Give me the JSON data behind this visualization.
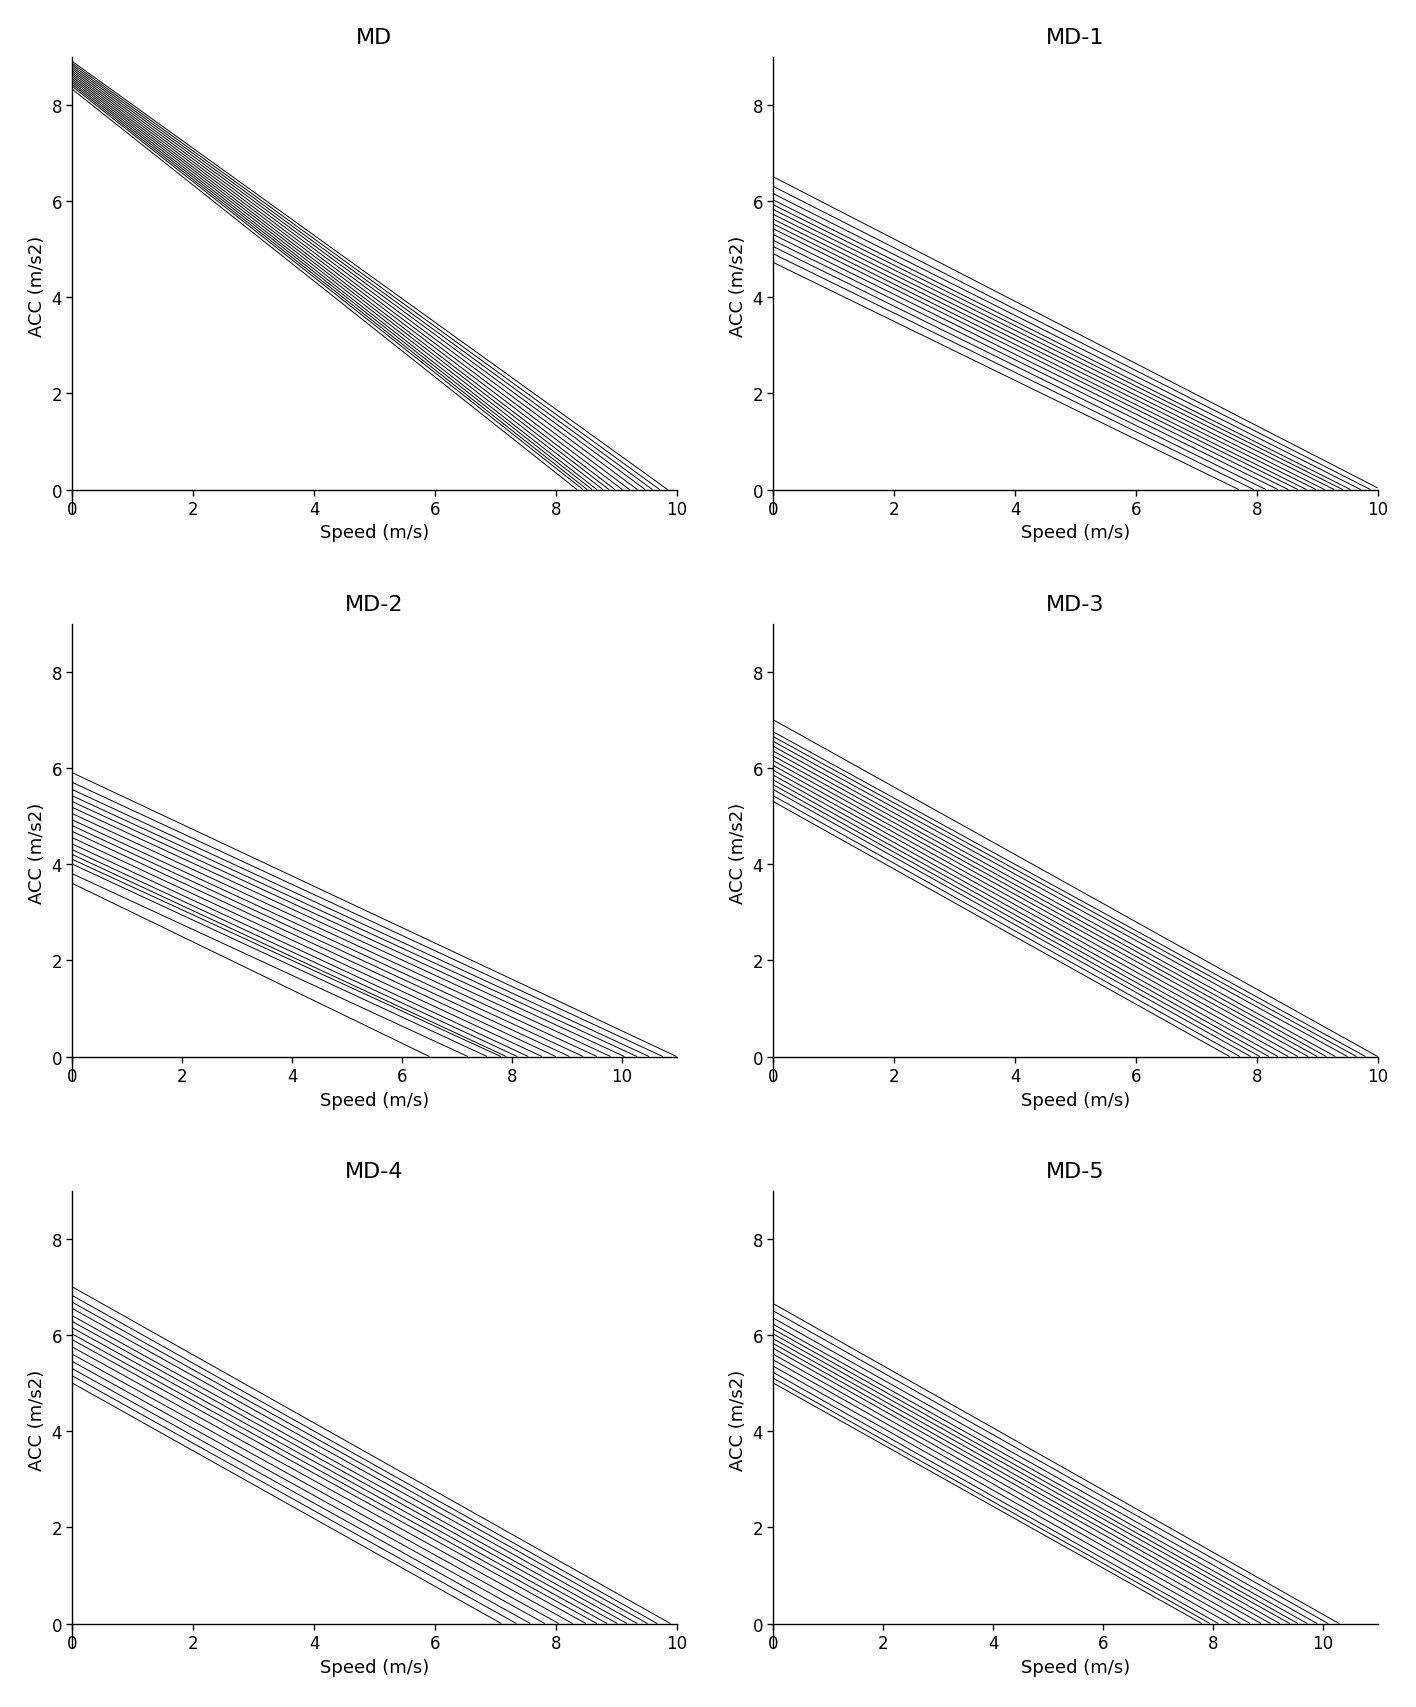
{
  "subplots": [
    {
      "title": "MD",
      "xlim": [
        0,
        10
      ],
      "ylim": [
        -0.5,
        9
      ],
      "xticks": [
        0,
        2,
        4,
        6,
        8,
        10
      ],
      "yticks": [
        0,
        2,
        4,
        6,
        8
      ],
      "lines": [
        {
          "y0": 8.32,
          "x_end": 8.35
        },
        {
          "y0": 8.38,
          "x_end": 8.45
        },
        {
          "y0": 8.42,
          "x_end": 8.52
        },
        {
          "y0": 8.46,
          "x_end": 8.6
        },
        {
          "y0": 8.5,
          "x_end": 8.68
        },
        {
          "y0": 8.54,
          "x_end": 8.78
        },
        {
          "y0": 8.58,
          "x_end": 8.88
        },
        {
          "y0": 8.62,
          "x_end": 8.98
        },
        {
          "y0": 8.66,
          "x_end": 9.1
        },
        {
          "y0": 8.7,
          "x_end": 9.22
        },
        {
          "y0": 8.74,
          "x_end": 9.35
        },
        {
          "y0": 8.78,
          "x_end": 9.48
        },
        {
          "y0": 8.82,
          "x_end": 9.6
        },
        {
          "y0": 8.86,
          "x_end": 9.72
        },
        {
          "y0": 8.9,
          "x_end": 9.85
        }
      ]
    },
    {
      "title": "MD-1",
      "xlim": [
        0,
        10
      ],
      "ylim": [
        -0.5,
        9
      ],
      "xticks": [
        0,
        2,
        4,
        6,
        8,
        10
      ],
      "yticks": [
        0,
        2,
        4,
        6,
        8
      ],
      "lines": [
        {
          "y0": 4.72,
          "x_end": 7.7
        },
        {
          "y0": 4.9,
          "x_end": 7.95
        },
        {
          "y0": 5.05,
          "x_end": 8.15
        },
        {
          "y0": 5.18,
          "x_end": 8.35
        },
        {
          "y0": 5.3,
          "x_end": 8.52
        },
        {
          "y0": 5.42,
          "x_end": 8.68
        },
        {
          "y0": 5.52,
          "x_end": 8.82
        },
        {
          "y0": 5.62,
          "x_end": 8.98
        },
        {
          "y0": 5.72,
          "x_end": 9.12
        },
        {
          "y0": 5.82,
          "x_end": 9.28
        },
        {
          "y0": 5.92,
          "x_end": 9.42
        },
        {
          "y0": 6.02,
          "x_end": 9.55
        },
        {
          "y0": 6.15,
          "x_end": 9.72
        },
        {
          "y0": 6.3,
          "x_end": 9.88
        },
        {
          "y0": 6.5,
          "x_end": 10.05
        }
      ]
    },
    {
      "title": "MD-2",
      "xlim": [
        0,
        11
      ],
      "ylim": [
        -0.5,
        9
      ],
      "xticks": [
        0,
        2,
        4,
        6,
        8,
        10
      ],
      "yticks": [
        0,
        2,
        4,
        6,
        8
      ],
      "lines": [
        {
          "y0": 3.6,
          "x_end": 6.5
        },
        {
          "y0": 3.8,
          "x_end": 7.2
        },
        {
          "y0": 4.0,
          "x_end": 7.55
        },
        {
          "y0": 4.1,
          "x_end": 7.8
        },
        {
          "y0": 4.2,
          "x_end": 7.9
        },
        {
          "y0": 4.3,
          "x_end": 8.1
        },
        {
          "y0": 4.42,
          "x_end": 8.3
        },
        {
          "y0": 4.55,
          "x_end": 8.55
        },
        {
          "y0": 4.68,
          "x_end": 8.8
        },
        {
          "y0": 4.8,
          "x_end": 9.05
        },
        {
          "y0": 4.92,
          "x_end": 9.3
        },
        {
          "y0": 5.05,
          "x_end": 9.55
        },
        {
          "y0": 5.18,
          "x_end": 9.8
        },
        {
          "y0": 5.3,
          "x_end": 10.05
        },
        {
          "y0": 5.42,
          "x_end": 10.28
        },
        {
          "y0": 5.55,
          "x_end": 10.5
        },
        {
          "y0": 5.7,
          "x_end": 10.75
        },
        {
          "y0": 5.9,
          "x_end": 11.0
        }
      ]
    },
    {
      "title": "MD-3",
      "xlim": [
        0,
        10
      ],
      "ylim": [
        -0.5,
        9
      ],
      "xticks": [
        0,
        2,
        4,
        6,
        8,
        10
      ],
      "yticks": [
        0,
        2,
        4,
        6,
        8
      ],
      "lines": [
        {
          "y0": 5.3,
          "x_end": 7.55
        },
        {
          "y0": 5.42,
          "x_end": 7.72
        },
        {
          "y0": 5.55,
          "x_end": 7.9
        },
        {
          "y0": 5.65,
          "x_end": 8.05
        },
        {
          "y0": 5.75,
          "x_end": 8.2
        },
        {
          "y0": 5.85,
          "x_end": 8.35
        },
        {
          "y0": 5.95,
          "x_end": 8.52
        },
        {
          "y0": 6.05,
          "x_end": 8.68
        },
        {
          "y0": 6.15,
          "x_end": 8.85
        },
        {
          "y0": 6.25,
          "x_end": 9.0
        },
        {
          "y0": 6.35,
          "x_end": 9.15
        },
        {
          "y0": 6.45,
          "x_end": 9.3
        },
        {
          "y0": 6.55,
          "x_end": 9.5
        },
        {
          "y0": 6.65,
          "x_end": 9.65
        },
        {
          "y0": 6.75,
          "x_end": 9.8
        },
        {
          "y0": 7.0,
          "x_end": 10.0
        }
      ]
    },
    {
      "title": "MD-4",
      "xlim": [
        0,
        10
      ],
      "ylim": [
        -0.5,
        9
      ],
      "xticks": [
        0,
        2,
        4,
        6,
        8,
        10
      ],
      "yticks": [
        0,
        2,
        4,
        6,
        8
      ],
      "lines": [
        {
          "y0": 5.0,
          "x_end": 7.1
        },
        {
          "y0": 5.15,
          "x_end": 7.35
        },
        {
          "y0": 5.3,
          "x_end": 7.58
        },
        {
          "y0": 5.45,
          "x_end": 7.82
        },
        {
          "y0": 5.6,
          "x_end": 8.05
        },
        {
          "y0": 5.75,
          "x_end": 8.28
        },
        {
          "y0": 5.9,
          "x_end": 8.5
        },
        {
          "y0": 6.02,
          "x_end": 8.68
        },
        {
          "y0": 6.15,
          "x_end": 8.85
        },
        {
          "y0": 6.28,
          "x_end": 9.02
        },
        {
          "y0": 6.4,
          "x_end": 9.18
        },
        {
          "y0": 6.55,
          "x_end": 9.35
        },
        {
          "y0": 6.68,
          "x_end": 9.52
        },
        {
          "y0": 6.82,
          "x_end": 9.68
        },
        {
          "y0": 7.0,
          "x_end": 9.9
        }
      ]
    },
    {
      "title": "MD-5",
      "xlim": [
        0,
        11
      ],
      "ylim": [
        -0.5,
        9
      ],
      "xticks": [
        0,
        2,
        4,
        6,
        8,
        10
      ],
      "yticks": [
        0,
        2,
        4,
        6,
        8
      ],
      "lines": [
        {
          "y0": 5.0,
          "x_end": 7.8
        },
        {
          "y0": 5.1,
          "x_end": 7.95
        },
        {
          "y0": 5.22,
          "x_end": 8.1
        },
        {
          "y0": 5.35,
          "x_end": 8.3
        },
        {
          "y0": 5.48,
          "x_end": 8.5
        },
        {
          "y0": 5.6,
          "x_end": 8.68
        },
        {
          "y0": 5.72,
          "x_end": 8.88
        },
        {
          "y0": 5.82,
          "x_end": 9.05
        },
        {
          "y0": 5.92,
          "x_end": 9.22
        },
        {
          "y0": 6.02,
          "x_end": 9.4
        },
        {
          "y0": 6.12,
          "x_end": 9.55
        },
        {
          "y0": 6.22,
          "x_end": 9.72
        },
        {
          "y0": 6.35,
          "x_end": 9.9
        },
        {
          "y0": 6.5,
          "x_end": 10.1
        },
        {
          "y0": 6.65,
          "x_end": 10.3
        }
      ]
    }
  ],
  "xlabel": "Speed (m/s)",
  "ylabel": "ACC (m/s2)",
  "line_color": "#000000",
  "line_width": 0.7,
  "bg_color": "#ffffff",
  "title_fontsize": 16,
  "label_fontsize": 13,
  "tick_fontsize": 12
}
